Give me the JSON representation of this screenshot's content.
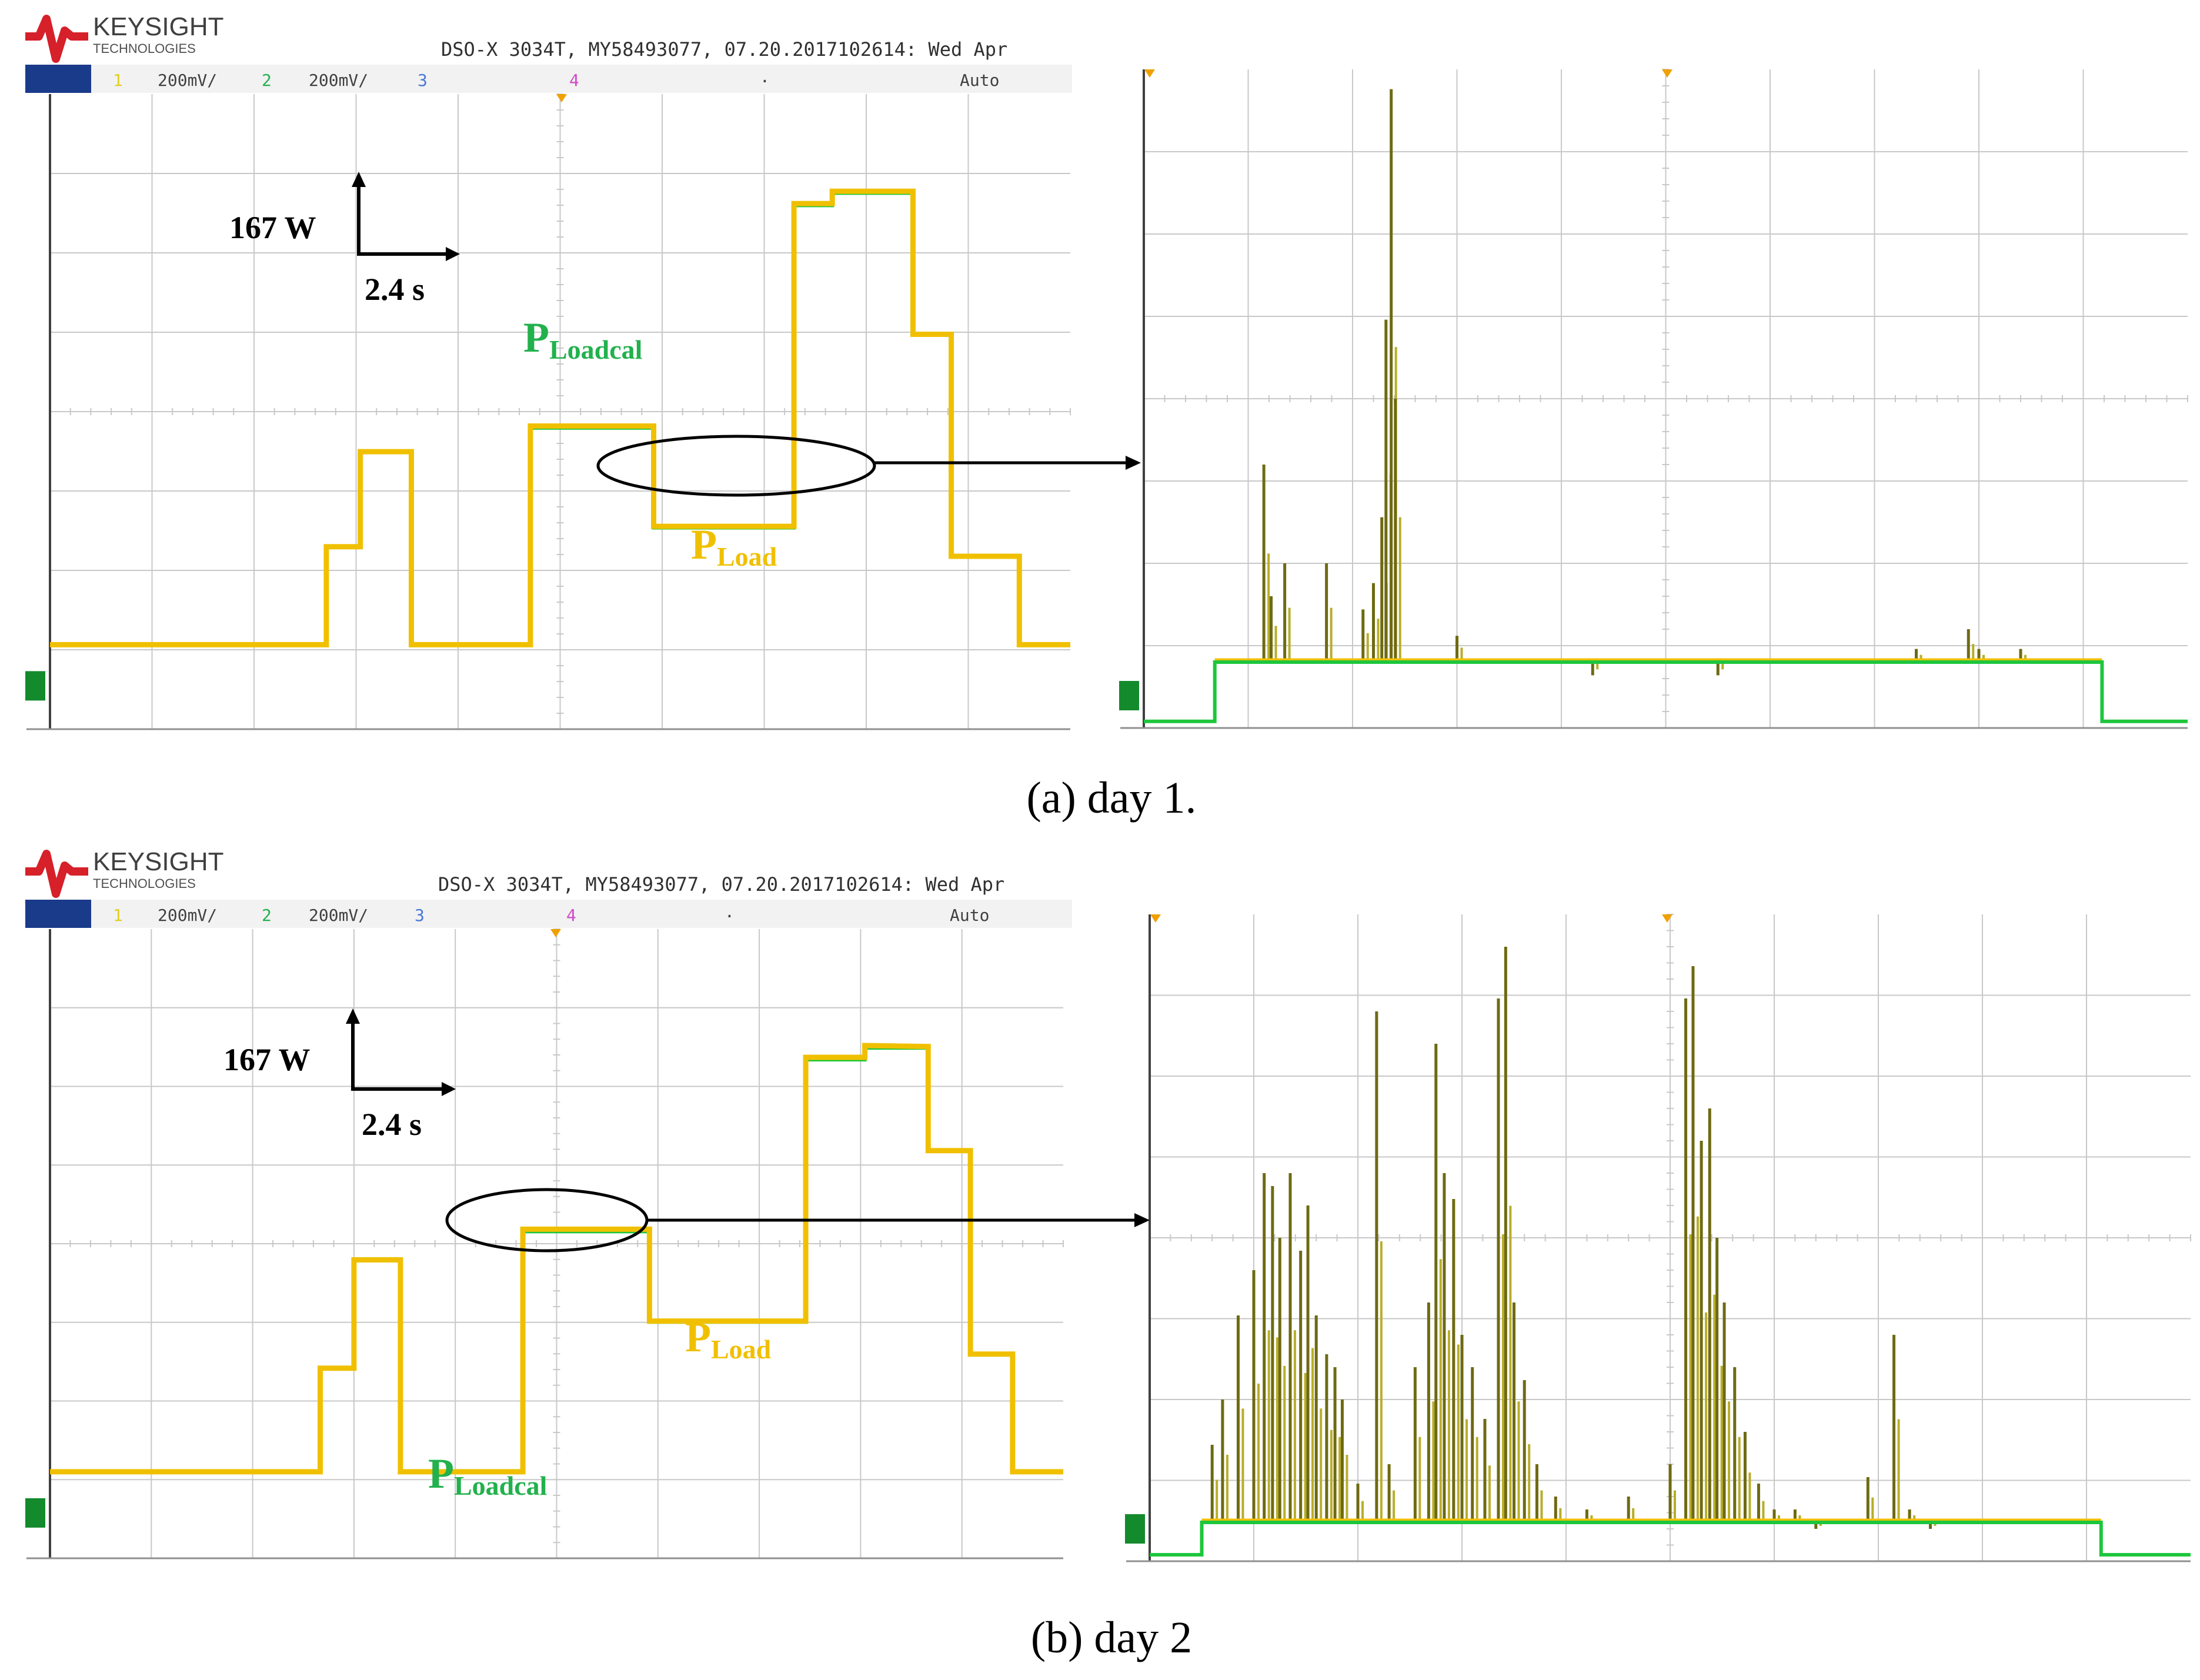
{
  "colors": {
    "load": "#f0c000",
    "loadcal": "#1ec63c",
    "trace_dark": "#6e6a12",
    "grid": "#c8c8c8",
    "frame": "#404040",
    "brand_red": "#d6202a",
    "ch1": "#e0d020",
    "ch2": "#22b14c",
    "ch3": "#4a78d8",
    "ch4": "#d04ac8",
    "marker": "#f0a000",
    "chip": "#1a3a8a"
  },
  "header": {
    "brand": "KEYSIGHT",
    "brand_sub": "TECHNOLOGIES",
    "model": "DSO-X 3034T, MY58493077, 07.20.2017102614: Wed Apr",
    "ch1_num": "1",
    "ch1_scale": "200mV/",
    "ch2_num": "2",
    "ch2_scale": "200mV/",
    "ch3_num": "3",
    "ch4_num": "4",
    "trigger": "Auto",
    "dot": "."
  },
  "annotations": {
    "scale_power": "167 W",
    "scale_time": "2.4 s",
    "P": "P",
    "load_sub": "Load",
    "loadcal_sub": "Loadcal"
  },
  "captions": {
    "a": "(a) day 1.",
    "b": "(b) day 2"
  },
  "chart_data": [
    {
      "type": "line",
      "panel": "day 1 main",
      "x_unit": "s",
      "y_unit": "W",
      "x_range": [
        0,
        24
      ],
      "y_range": [
        -183.7,
        1152.3
      ],
      "grid": true,
      "series": [
        {
          "name": "P_Loadcal",
          "x": [
            0,
            6.5,
            6.5,
            7.3,
            7.3,
            8.5,
            8.5,
            11.3,
            11.3,
            14.2,
            14.2,
            17.5,
            17.5,
            18.4,
            18.4,
            20.3,
            20.3,
            21.2,
            21.2,
            22.8,
            22.8,
            24
          ],
          "y": [
            -6,
            -6,
            200,
            200,
            400,
            400,
            -6,
            -6,
            450,
            450,
            240,
            240,
            918,
            918,
            944,
            944,
            647,
            647,
            180,
            180,
            -6,
            -6
          ]
        },
        {
          "name": "P_Load",
          "x": [
            0,
            6.5,
            6.5,
            7.3,
            7.3,
            8.5,
            8.5,
            11.3,
            11.3,
            14.2,
            14.2,
            17.5,
            17.5,
            18.4,
            18.4,
            20.3,
            20.3,
            21.2,
            21.2,
            22.8,
            22.8,
            24
          ],
          "y": [
            -6,
            -6,
            200,
            200,
            400,
            400,
            -6,
            -6,
            454,
            454,
            243,
            243,
            922,
            922,
            948,
            948,
            647,
            647,
            180,
            180,
            -6,
            -6
          ]
        }
      ]
    },
    {
      "type": "line",
      "panel": "day 1 zoom",
      "x_range": [
        0,
        1
      ],
      "y_range": [
        0,
        1
      ],
      "grid": true,
      "series": [
        {
          "name": "P_Loadcal",
          "x": [
            0,
            0.068,
            0.068,
            0.918,
            0.918,
            1
          ],
          "y": [
            0.01,
            0.01,
            0.1,
            0.1,
            0.01,
            0.01
          ]
        },
        {
          "name": "P_Load",
          "spikes": [
            [
              0.115,
              0.4
            ],
            [
              0.122,
              0.2
            ],
            [
              0.135,
              0.25
            ],
            [
              0.175,
              0.25
            ],
            [
              0.21,
              0.18
            ],
            [
              0.22,
              0.22
            ],
            [
              0.228,
              0.32
            ],
            [
              0.232,
              0.62
            ],
            [
              0.237,
              0.97
            ],
            [
              0.241,
              0.5
            ],
            [
              0.3,
              0.14
            ],
            [
              0.43,
              0.08
            ],
            [
              0.55,
              0.08
            ],
            [
              0.74,
              0.12
            ],
            [
              0.79,
              0.15
            ],
            [
              0.8,
              0.12
            ],
            [
              0.84,
              0.12
            ]
          ]
        }
      ]
    },
    {
      "type": "line",
      "panel": "day 2 main",
      "x_unit": "s",
      "y_unit": "W",
      "x_range": [
        0,
        24
      ],
      "y_range": [
        -183.7,
        1152.3
      ],
      "grid": true,
      "series": [
        {
          "name": "P_Loadcal",
          "x": [
            0,
            6.4,
            6.4,
            7.2,
            7.2,
            8.3,
            8.3,
            11.2,
            11.2,
            14.2,
            14.2,
            17.9,
            17.9,
            19.3,
            19.3,
            20.8,
            20.8,
            21.8,
            21.8,
            22.8,
            22.8,
            24
          ],
          "y": [
            0,
            0,
            220,
            220,
            450,
            450,
            0,
            0,
            510,
            510,
            318,
            318,
            875,
            875,
            900,
            900,
            682,
            682,
            250,
            250,
            0,
            0
          ]
        },
        {
          "name": "P_Load",
          "x": [
            0,
            6.4,
            6.4,
            7.2,
            7.2,
            8.3,
            8.3,
            11.2,
            11.2,
            14.2,
            14.2,
            17.9,
            17.9,
            19.3,
            19.3,
            20.8,
            20.8,
            21.8,
            21.8,
            22.8,
            22.8,
            24
          ],
          "y": [
            0,
            0,
            220,
            220,
            450,
            450,
            0,
            0,
            515,
            515,
            320,
            320,
            880,
            880,
            905,
            903,
            682,
            682,
            250,
            250,
            0,
            0
          ]
        }
      ]
    },
    {
      "type": "line",
      "panel": "day 2 zoom",
      "x_range": [
        0,
        1
      ],
      "y_range": [
        0,
        1
      ],
      "grid": true,
      "series": [
        {
          "name": "P_Loadcal",
          "x": [
            0,
            0.05,
            0.05,
            0.914,
            0.914,
            1
          ],
          "y": [
            0.01,
            0.01,
            0.06,
            0.06,
            0.01,
            0.01
          ]
        },
        {
          "name": "P_Load",
          "spikes": [
            [
              0.06,
              0.18
            ],
            [
              0.07,
              0.25
            ],
            [
              0.085,
              0.38
            ],
            [
              0.1,
              0.45
            ],
            [
              0.11,
              0.6
            ],
            [
              0.118,
              0.58
            ],
            [
              0.125,
              0.5
            ],
            [
              0.135,
              0.6
            ],
            [
              0.145,
              0.48
            ],
            [
              0.152,
              0.55
            ],
            [
              0.16,
              0.38
            ],
            [
              0.17,
              0.32
            ],
            [
              0.178,
              0.3
            ],
            [
              0.185,
              0.25
            ],
            [
              0.2,
              0.12
            ],
            [
              0.218,
              0.85
            ],
            [
              0.23,
              0.15
            ],
            [
              0.255,
              0.3
            ],
            [
              0.268,
              0.4
            ],
            [
              0.275,
              0.8
            ],
            [
              0.283,
              0.6
            ],
            [
              0.292,
              0.56
            ],
            [
              0.3,
              0.35
            ],
            [
              0.31,
              0.3
            ],
            [
              0.322,
              0.22
            ],
            [
              0.335,
              0.87
            ],
            [
              0.342,
              0.95
            ],
            [
              0.35,
              0.4
            ],
            [
              0.36,
              0.28
            ],
            [
              0.372,
              0.15
            ],
            [
              0.39,
              0.1
            ],
            [
              0.42,
              0.08
            ],
            [
              0.44,
              0.06
            ],
            [
              0.46,
              0.1
            ],
            [
              0.5,
              0.15
            ],
            [
              0.515,
              0.87
            ],
            [
              0.522,
              0.92
            ],
            [
              0.53,
              0.65
            ],
            [
              0.538,
              0.7
            ],
            [
              0.545,
              0.5
            ],
            [
              0.552,
              0.4
            ],
            [
              0.562,
              0.3
            ],
            [
              0.572,
              0.2
            ],
            [
              0.585,
              0.12
            ],
            [
              0.6,
              0.08
            ],
            [
              0.62,
              0.08
            ],
            [
              0.64,
              0.05
            ],
            [
              0.69,
              0.13
            ],
            [
              0.715,
              0.35
            ],
            [
              0.73,
              0.08
            ],
            [
              0.75,
              0.05
            ]
          ]
        }
      ]
    }
  ]
}
